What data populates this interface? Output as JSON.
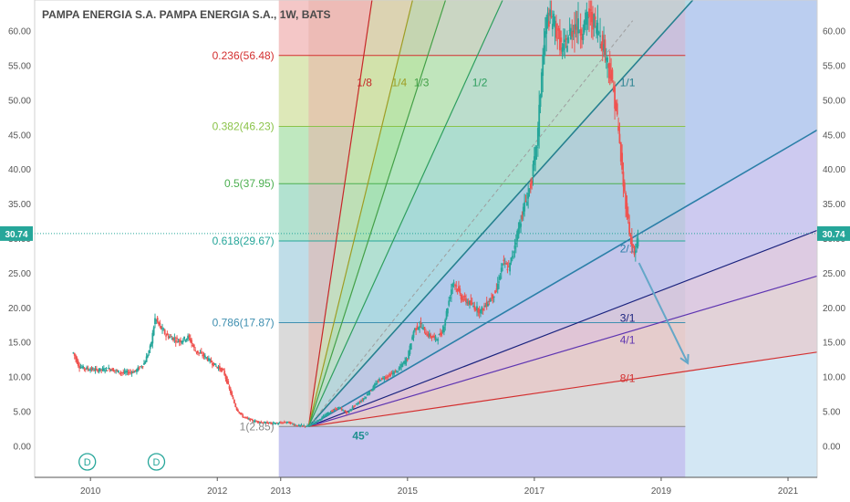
{
  "chart_data": {
    "type": "candlestick",
    "title": "PAMPA ENERGIA S.A. PAMPA ENERGIA S.A., 1W, BATS",
    "symbol": "PAMPA ENERGIA S.A.",
    "interval": "1W",
    "exchange": "BATS",
    "ylim": [
      -4.5,
      64.5
    ],
    "xlim": [
      2009.12,
      2021.46
    ],
    "y_ticks": [
      "60.00",
      "55.00",
      "50.00",
      "45.00",
      "40.00",
      "35.00",
      "30.00",
      "25.00",
      "20.00",
      "15.00",
      "10.00",
      "5.00",
      "0.00"
    ],
    "x_ticks": [
      "2010",
      "2012",
      "2013",
      "2015",
      "2017",
      "2019",
      "2021"
    ],
    "last_price": {
      "value": 30.74,
      "label": "30.74",
      "color": "#26a69a"
    },
    "fib_retracement": {
      "x_start": 2012.97,
      "x_end": 2019.38,
      "levels": [
        {
          "ratio": 0,
          "price": 64.5,
          "label": "",
          "line_color": "#e05555",
          "fill": "#f4c7c7"
        },
        {
          "ratio": 0.236,
          "price": 56.48,
          "label": "0.236(56.48)",
          "line_color": "#d32f2f",
          "fill": "#dde8b8"
        },
        {
          "ratio": 0.382,
          "price": 46.23,
          "label": "0.382(46.23)",
          "line_color": "#8bc34a",
          "fill": "#bfe8bf"
        },
        {
          "ratio": 0.5,
          "price": 37.95,
          "label": "0.5(37.95)",
          "line_color": "#4caf50",
          "fill": "#b2e2d0"
        },
        {
          "ratio": 0.618,
          "price": 29.67,
          "label": "0.618(29.67)",
          "line_color": "#26a69a",
          "fill": "#bfdde8"
        },
        {
          "ratio": 0.786,
          "price": 17.87,
          "label": "0.786(17.87)",
          "line_color": "#3f8fb0",
          "fill": "#dadada"
        },
        {
          "ratio": 1,
          "price": 2.85,
          "label": "1(2.85)",
          "line_color": "#888888",
          "fill": "#c6c6f0"
        }
      ]
    },
    "right_extension_fill": "#c4dff0",
    "gann_fan": {
      "origin": {
        "x": 2013.44,
        "y": 2.85
      },
      "angle_label": "45°",
      "lines": [
        {
          "label": "1/8",
          "x_end": 2014.44,
          "y_end": 64.5,
          "color": "#c62828",
          "fill": "#e8b0a8",
          "label_at": [
            2014.2,
            52.0
          ]
        },
        {
          "label": "1/4",
          "x_end": 2015.08,
          "y_end": 64.5,
          "color": "#9e9d24",
          "fill": "#c9dca0",
          "label_at": [
            2014.75,
            52.0
          ]
        },
        {
          "label": "1/3",
          "x_end": 2015.6,
          "y_end": 64.5,
          "color": "#43a047",
          "fill": "#9ee09e",
          "label_at": [
            2015.1,
            52.0
          ]
        },
        {
          "label": "1/2",
          "x_end": 2016.5,
          "y_end": 64.5,
          "color": "#2e9e5e",
          "fill": "#a8e2c0",
          "label_at": [
            2016.02,
            52.0
          ]
        },
        {
          "label": "1/1",
          "x_end": 2019.5,
          "y_end": 64.5,
          "color": "#26808f",
          "fill": "#9fd3dd",
          "label_at": [
            2018.35,
            52.0
          ]
        },
        {
          "label": "2/1",
          "x_end": 2021.46,
          "y_end": 45.7,
          "color": "#2b7fa8",
          "fill": "#a7b9ec",
          "label_at": [
            2018.35,
            28.0
          ]
        },
        {
          "label": "3/1",
          "x_end": 2021.46,
          "y_end": 31.2,
          "color": "#1a237e",
          "fill": "#c9b3ec",
          "label_at": [
            2018.35,
            18.0
          ]
        },
        {
          "label": "4/1",
          "x_end": 2021.46,
          "y_end": 24.6,
          "color": "#5e35b1",
          "fill": "#e6b4d4",
          "label_at": [
            2018.35,
            14.8
          ]
        },
        {
          "label": "8/1",
          "x_end": 2021.46,
          "y_end": 13.6,
          "color": "#d32f2f",
          "fill": "#eec1c1",
          "label_at": [
            2018.35,
            9.3
          ]
        }
      ],
      "below_fill": "#d8dae8",
      "dashed_line": {
        "x_end": 2018.55,
        "y_end": 61.5,
        "color": "#9e9e9e"
      }
    },
    "arrow": {
      "from": [
        2018.65,
        26.5
      ],
      "to": [
        2019.42,
        12.0
      ],
      "color": "#64a7c8"
    },
    "dividend_markers": [
      {
        "label": "D",
        "x": 2009.95
      },
      {
        "label": "D",
        "x": 2011.04
      }
    ],
    "price_path": [
      [
        2009.73,
        13.5
      ],
      [
        2009.82,
        11.5
      ],
      [
        2009.95,
        11.2
      ],
      [
        2010.1,
        11.0
      ],
      [
        2010.3,
        11.2
      ],
      [
        2010.5,
        10.6
      ],
      [
        2010.7,
        10.8
      ],
      [
        2010.85,
        12.0
      ],
      [
        2010.95,
        14.5
      ],
      [
        2011.02,
        18.5
      ],
      [
        2011.1,
        17.2
      ],
      [
        2011.2,
        16.0
      ],
      [
        2011.4,
        15.2
      ],
      [
        2011.55,
        15.8
      ],
      [
        2011.65,
        13.8
      ],
      [
        2011.8,
        13.0
      ],
      [
        2011.95,
        11.8
      ],
      [
        2012.1,
        10.8
      ],
      [
        2012.2,
        8.0
      ],
      [
        2012.3,
        5.4
      ],
      [
        2012.4,
        4.3
      ],
      [
        2012.55,
        3.7
      ],
      [
        2012.75,
        3.4
      ],
      [
        2012.95,
        3.3
      ],
      [
        2013.1,
        3.5
      ],
      [
        2013.25,
        3.0
      ],
      [
        2013.44,
        2.9
      ],
      [
        2013.6,
        3.8
      ],
      [
        2013.75,
        4.8
      ],
      [
        2013.9,
        5.6
      ],
      [
        2014.05,
        4.8
      ],
      [
        2014.15,
        5.8
      ],
      [
        2014.3,
        6.8
      ],
      [
        2014.45,
        8.4
      ],
      [
        2014.55,
        9.6
      ],
      [
        2014.7,
        10.2
      ],
      [
        2014.85,
        11.0
      ],
      [
        2015.0,
        12.8
      ],
      [
        2015.1,
        16.8
      ],
      [
        2015.2,
        17.6
      ],
      [
        2015.3,
        16.2
      ],
      [
        2015.45,
        15.5
      ],
      [
        2015.55,
        16.5
      ],
      [
        2015.72,
        24.0
      ],
      [
        2015.85,
        21.5
      ],
      [
        2016.0,
        20.5
      ],
      [
        2016.15,
        19.5
      ],
      [
        2016.3,
        21.2
      ],
      [
        2016.4,
        22.5
      ],
      [
        2016.5,
        26.5
      ],
      [
        2016.6,
        25.6
      ],
      [
        2016.75,
        31.5
      ],
      [
        2016.85,
        35.0
      ],
      [
        2016.95,
        38.0
      ],
      [
        2017.05,
        44.5
      ],
      [
        2017.12,
        55.0
      ],
      [
        2017.2,
        62.0
      ],
      [
        2017.3,
        61.5
      ],
      [
        2017.45,
        57.0
      ],
      [
        2017.55,
        59.5
      ],
      [
        2017.65,
        61.0
      ],
      [
        2017.75,
        60.0
      ],
      [
        2017.85,
        62.5
      ],
      [
        2018.0,
        60.5
      ],
      [
        2018.1,
        57.5
      ],
      [
        2018.2,
        54.0
      ],
      [
        2018.3,
        48.0
      ],
      [
        2018.4,
        38.0
      ],
      [
        2018.5,
        31.0
      ],
      [
        2018.58,
        27.5
      ],
      [
        2018.65,
        30.74
      ]
    ]
  }
}
